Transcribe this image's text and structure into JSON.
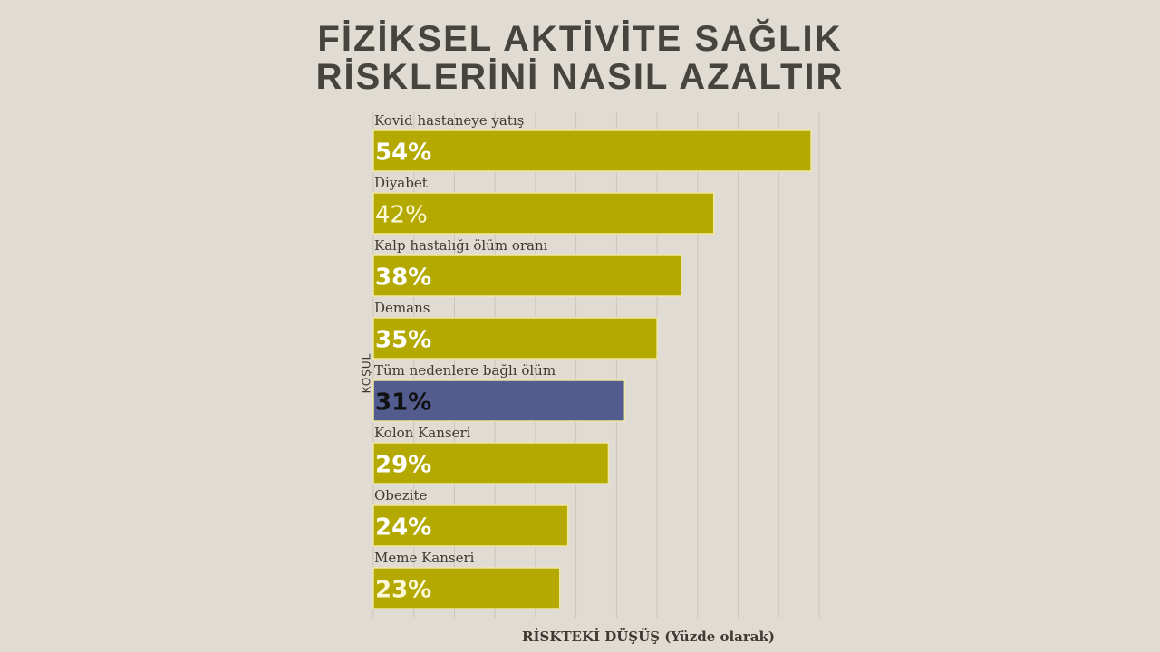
{
  "chart_data": {
    "type": "bar",
    "orientation": "horizontal",
    "title_lines": [
      "FİZİKSEL AKTİVİTE SAĞLIK",
      "RİSKLERİNİ NASIL AZALTIR"
    ],
    "xlabel": "RİSKTEKİ DÜŞÜŞ (Yüzde olarak)",
    "ylabel": "KOŞUL",
    "xlim": [
      0,
      55
    ],
    "grid": true,
    "categories": [
      "Kovid hastaneye yatış",
      "Diyabet",
      "Kalp hastalığı ölüm oranı",
      "Demans",
      "Tüm nedenlere bağlı ölüm",
      "Kolon Kanseri",
      "Obezite",
      "Meme Kanseri"
    ],
    "values": [
      54,
      42,
      38,
      35,
      31,
      29,
      24,
      23
    ],
    "value_labels": [
      "54%",
      "42%",
      "38%",
      "35%",
      "31%",
      "29%",
      "24%",
      "23%"
    ],
    "colors": [
      "#b3a900",
      "#b3a900",
      "#b3a900",
      "#b3a900",
      "#525c8f",
      "#b3a900",
      "#b3a900",
      "#b3a900"
    ],
    "label_colors": [
      "#ffffff",
      "#fdf9d8",
      "#ffffff",
      "#ffffff",
      "#111111",
      "#ffffff",
      "#ffffff",
      "#fdf9d8"
    ]
  }
}
